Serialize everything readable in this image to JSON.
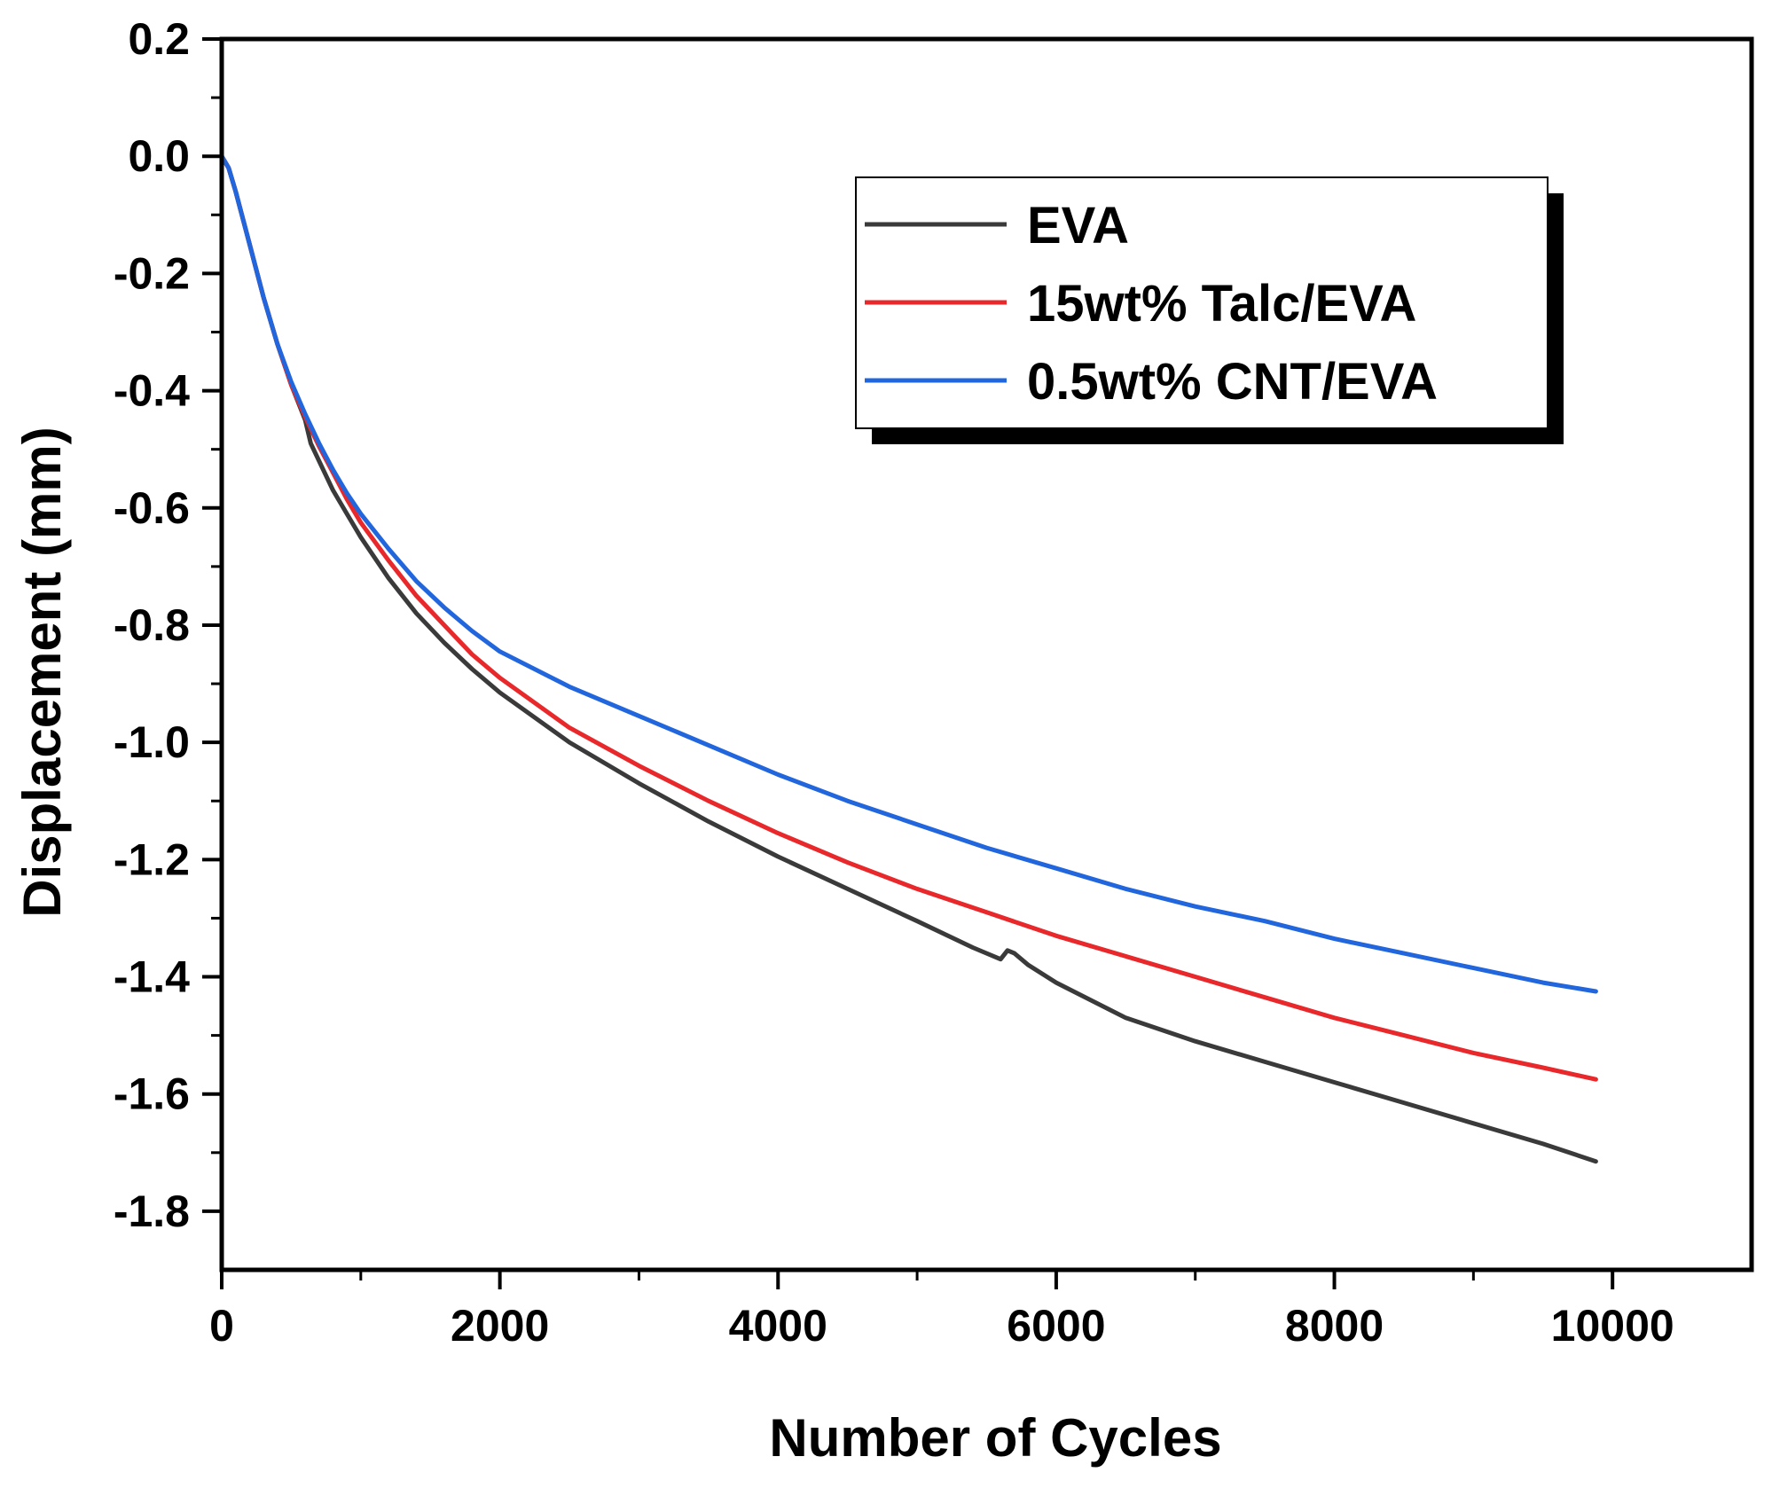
{
  "chart_data": {
    "type": "line",
    "title": "",
    "xlabel": "Number of Cycles",
    "ylabel": "Displacement (mm)",
    "xlim": [
      0,
      11000
    ],
    "ylim": [
      -1.9,
      0.2
    ],
    "xticks": [
      0,
      2000,
      4000,
      6000,
      8000,
      10000
    ],
    "xtick_labels": [
      "0",
      "2000",
      "4000",
      "6000",
      "8000",
      "10000"
    ],
    "yticks": [
      0.2,
      0.0,
      -0.2,
      -0.4,
      -0.6,
      -0.8,
      -1.0,
      -1.2,
      -1.4,
      -1.6,
      -1.8
    ],
    "ytick_labels": [
      "0.2",
      "0.0",
      "-0.2",
      "-0.4",
      "-0.6",
      "-0.8",
      "-1.0",
      "-1.2",
      "-1.4",
      "-1.6",
      "-1.8"
    ],
    "grid": false,
    "legend_position": "top-right",
    "series": [
      {
        "name": "EVA",
        "color": "#3a3a3a",
        "x": [
          0,
          50,
          100,
          200,
          300,
          400,
          500,
          600,
          640,
          700,
          800,
          900,
          1000,
          1200,
          1400,
          1600,
          1800,
          2000,
          2500,
          3000,
          3500,
          4000,
          4500,
          5000,
          5400,
          5600,
          5650,
          5700,
          5800,
          6000,
          6500,
          7000,
          7500,
          8000,
          8500,
          9000,
          9500,
          9880
        ],
        "y": [
          0.0,
          -0.02,
          -0.06,
          -0.15,
          -0.24,
          -0.32,
          -0.39,
          -0.45,
          -0.49,
          -0.52,
          -0.57,
          -0.61,
          -0.65,
          -0.72,
          -0.78,
          -0.83,
          -0.875,
          -0.915,
          -1.0,
          -1.07,
          -1.135,
          -1.195,
          -1.25,
          -1.305,
          -1.35,
          -1.37,
          -1.355,
          -1.36,
          -1.38,
          -1.41,
          -1.47,
          -1.51,
          -1.545,
          -1.58,
          -1.615,
          -1.65,
          -1.685,
          -1.715
        ]
      },
      {
        "name": "15wt% Talc/EVA",
        "color": "#e8282a",
        "x": [
          0,
          50,
          100,
          200,
          300,
          400,
          500,
          600,
          700,
          800,
          900,
          1000,
          1200,
          1400,
          1600,
          1800,
          2000,
          2500,
          3000,
          3500,
          4000,
          4500,
          5000,
          5500,
          6000,
          6500,
          7000,
          7500,
          8000,
          8500,
          9000,
          9500,
          9880
        ],
        "y": [
          0.0,
          -0.02,
          -0.06,
          -0.15,
          -0.24,
          -0.32,
          -0.39,
          -0.445,
          -0.495,
          -0.54,
          -0.585,
          -0.625,
          -0.69,
          -0.75,
          -0.8,
          -0.85,
          -0.89,
          -0.975,
          -1.04,
          -1.1,
          -1.155,
          -1.205,
          -1.25,
          -1.29,
          -1.33,
          -1.365,
          -1.4,
          -1.435,
          -1.47,
          -1.5,
          -1.53,
          -1.555,
          -1.575
        ]
      },
      {
        "name": "0.5wt% CNT/EVA",
        "color": "#2266dd",
        "x": [
          0,
          50,
          100,
          200,
          300,
          400,
          500,
          600,
          700,
          800,
          900,
          1000,
          1200,
          1400,
          1600,
          1800,
          2000,
          2500,
          3000,
          3500,
          4000,
          4500,
          5000,
          5500,
          6000,
          6500,
          7000,
          7500,
          8000,
          8500,
          9000,
          9500,
          9880
        ],
        "y": [
          0.0,
          -0.02,
          -0.06,
          -0.15,
          -0.24,
          -0.32,
          -0.385,
          -0.44,
          -0.49,
          -0.535,
          -0.575,
          -0.61,
          -0.67,
          -0.725,
          -0.77,
          -0.81,
          -0.845,
          -0.905,
          -0.955,
          -1.005,
          -1.055,
          -1.1,
          -1.14,
          -1.18,
          -1.215,
          -1.25,
          -1.28,
          -1.305,
          -1.335,
          -1.36,
          -1.385,
          -1.41,
          -1.425
        ]
      }
    ]
  }
}
